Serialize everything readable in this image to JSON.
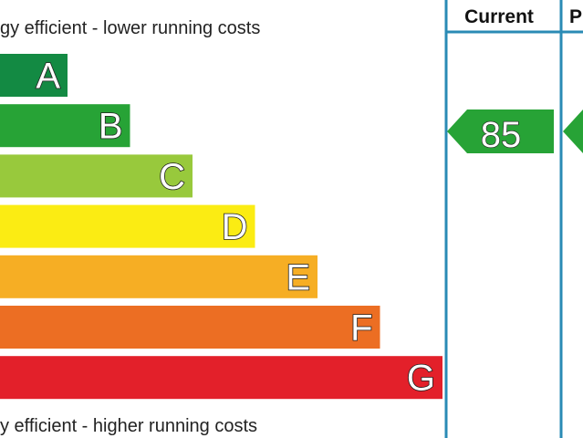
{
  "chart_data": {
    "type": "bar",
    "top_caption": "gy efficient - lower running costs",
    "bottom_caption": "y efficient - higher running costs",
    "columns": [
      "Current",
      "P"
    ],
    "bands": [
      {
        "letter": "A",
        "color": "#138a43"
      },
      {
        "letter": "B",
        "color": "#27a336"
      },
      {
        "letter": "C",
        "color": "#98c93c"
      },
      {
        "letter": "D",
        "color": "#fbec13"
      },
      {
        "letter": "E",
        "color": "#f6ae24"
      },
      {
        "letter": "F",
        "color": "#ec6e23"
      },
      {
        "letter": "G",
        "color": "#e3202a"
      }
    ],
    "current_rating": {
      "value": 85,
      "band": "B",
      "color": "#27a336"
    },
    "potential_rating": {
      "band": "B",
      "color": "#27a336"
    },
    "frame_color": "#2a8bb5"
  }
}
